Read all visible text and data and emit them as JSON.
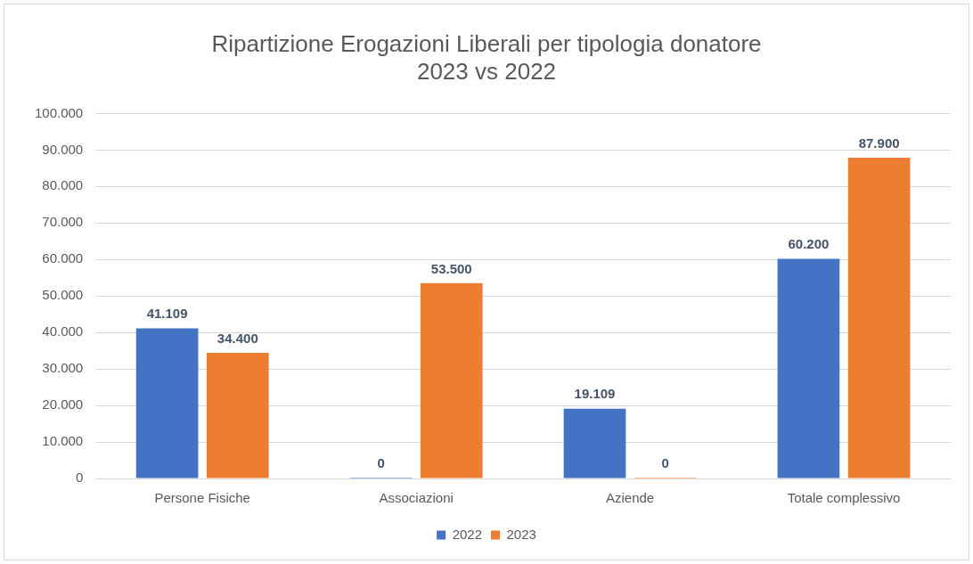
{
  "chart_data": {
    "type": "bar",
    "title": "Ripartizione Erogazioni Liberali per tipologia donatore\n2023 vs 2022",
    "categories": [
      "Persone Fisiche",
      "Associazioni",
      "Aziende",
      "Totale complessivo"
    ],
    "series": [
      {
        "name": "2022",
        "color": "#4472c4",
        "values": [
          41109,
          0,
          19109,
          60200
        ],
        "value_labels": [
          "41.109",
          "0",
          "19.109",
          "60.200"
        ]
      },
      {
        "name": "2023",
        "color": "#ed7d31",
        "values": [
          34400,
          53500,
          0,
          87900
        ],
        "value_labels": [
          "34.400",
          "53.500",
          "0",
          "87.900"
        ]
      }
    ],
    "ylim": [
      0,
      100000
    ],
    "yticks": [
      {
        "value": 0,
        "label": "0"
      },
      {
        "value": 10000,
        "label": "10.000"
      },
      {
        "value": 20000,
        "label": "20.000"
      },
      {
        "value": 30000,
        "label": "30.000"
      },
      {
        "value": 40000,
        "label": "40.000"
      },
      {
        "value": 50000,
        "label": "50.000"
      },
      {
        "value": 60000,
        "label": "60.000"
      },
      {
        "value": 70000,
        "label": "70.000"
      },
      {
        "value": 80000,
        "label": "80.000"
      },
      {
        "value": 90000,
        "label": "90.000"
      },
      {
        "value": 100000,
        "label": "100.000"
      }
    ],
    "grid": "y",
    "legend": "bottom"
  }
}
